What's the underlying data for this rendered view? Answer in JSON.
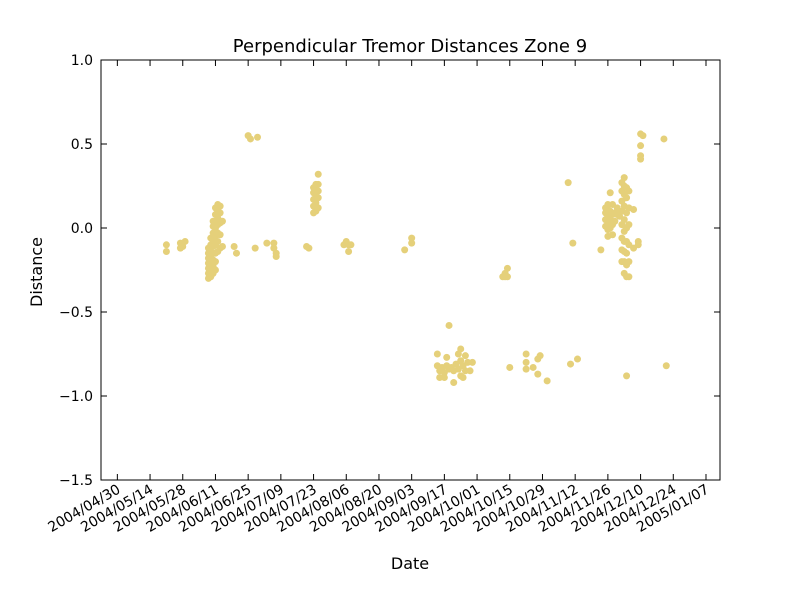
{
  "chart_data": {
    "type": "scatter",
    "title": "Perpendicular Tremor Distances Zone 9",
    "xlabel": "Date",
    "ylabel": "Distance",
    "x_axis": "date",
    "xlim": [
      "2004-04-23",
      "2005-01-13"
    ],
    "ylim": [
      -1.5,
      1.0
    ],
    "y_ticks": [
      1.0,
      0.5,
      0.0,
      -0.5,
      -1.0,
      -1.5
    ],
    "y_tick_labels": [
      "1.0",
      "0.5",
      "0.0",
      "−0.5",
      "−1.0",
      "−1.5"
    ],
    "x_ticks": [
      "2004-04-30",
      "2004-05-14",
      "2004-05-28",
      "2004-06-11",
      "2004-06-25",
      "2004-07-09",
      "2004-07-23",
      "2004-08-06",
      "2004-08-20",
      "2004-09-03",
      "2004-09-17",
      "2004-10-01",
      "2004-10-15",
      "2004-10-29",
      "2004-11-12",
      "2004-11-26",
      "2004-12-10",
      "2004-12-24",
      "2005-01-07"
    ],
    "x_tick_labels": [
      "2004/04/30",
      "2004/05/14",
      "2004/05/28",
      "2004/06/11",
      "2004/06/25",
      "2004/07/09",
      "2004/07/23",
      "2004/08/06",
      "2004/08/20",
      "2004/09/03",
      "2004/09/17",
      "2004/10/01",
      "2004/10/15",
      "2004/10/29",
      "2004/11/12",
      "2004/11/26",
      "2004/12/10",
      "2004/12/24",
      "2005/01/07"
    ],
    "grid": false,
    "legend": "none",
    "marker_color": "#e5d07a",
    "points": [
      [
        "2004-05-21",
        -0.1
      ],
      [
        "2004-05-21",
        -0.14
      ],
      [
        "2004-05-27",
        -0.09
      ],
      [
        "2004-05-27",
        -0.12
      ],
      [
        "2004-05-28",
        -0.11
      ],
      [
        "2004-05-29",
        -0.08
      ],
      [
        "2004-06-08",
        -0.3
      ],
      [
        "2004-06-08",
        -0.27
      ],
      [
        "2004-06-08",
        -0.24
      ],
      [
        "2004-06-08",
        -0.21
      ],
      [
        "2004-06-08",
        -0.18
      ],
      [
        "2004-06-08",
        -0.15
      ],
      [
        "2004-06-08",
        -0.12
      ],
      [
        "2004-06-09",
        -0.29
      ],
      [
        "2004-06-09",
        -0.26
      ],
      [
        "2004-06-09",
        -0.22
      ],
      [
        "2004-06-09",
        -0.18
      ],
      [
        "2004-06-09",
        -0.14
      ],
      [
        "2004-06-09",
        -0.1
      ],
      [
        "2004-06-09",
        -0.06
      ],
      [
        "2004-06-10",
        -0.27
      ],
      [
        "2004-06-10",
        -0.23
      ],
      [
        "2004-06-10",
        -0.19
      ],
      [
        "2004-06-10",
        -0.15
      ],
      [
        "2004-06-10",
        -0.11
      ],
      [
        "2004-06-10",
        -0.07
      ],
      [
        "2004-06-10",
        -0.03
      ],
      [
        "2004-06-10",
        0.01
      ],
      [
        "2004-06-10",
        0.04
      ],
      [
        "2004-06-11",
        -0.25
      ],
      [
        "2004-06-11",
        -0.2
      ],
      [
        "2004-06-11",
        -0.15
      ],
      [
        "2004-06-11",
        -0.1
      ],
      [
        "2004-06-11",
        -0.05
      ],
      [
        "2004-06-11",
        0.0
      ],
      [
        "2004-06-11",
        0.04
      ],
      [
        "2004-06-11",
        0.08
      ],
      [
        "2004-06-11",
        0.12
      ],
      [
        "2004-06-12",
        -0.14
      ],
      [
        "2004-06-12",
        -0.08
      ],
      [
        "2004-06-12",
        -0.03
      ],
      [
        "2004-06-12",
        0.02
      ],
      [
        "2004-06-12",
        0.06
      ],
      [
        "2004-06-12",
        0.1
      ],
      [
        "2004-06-12",
        0.14
      ],
      [
        "2004-06-13",
        -0.12
      ],
      [
        "2004-06-13",
        -0.04
      ],
      [
        "2004-06-13",
        0.03
      ],
      [
        "2004-06-13",
        0.09
      ],
      [
        "2004-06-13",
        0.13
      ],
      [
        "2004-06-14",
        -0.11
      ],
      [
        "2004-06-14",
        0.04
      ],
      [
        "2004-06-19",
        -0.11
      ],
      [
        "2004-06-20",
        -0.15
      ],
      [
        "2004-06-25",
        0.55
      ],
      [
        "2004-06-26",
        0.53
      ],
      [
        "2004-06-29",
        0.54
      ],
      [
        "2004-06-28",
        -0.12
      ],
      [
        "2004-07-03",
        -0.09
      ],
      [
        "2004-07-06",
        -0.09
      ],
      [
        "2004-07-06",
        -0.12
      ],
      [
        "2004-07-07",
        -0.15
      ],
      [
        "2004-07-07",
        -0.17
      ],
      [
        "2004-07-20",
        -0.11
      ],
      [
        "2004-07-21",
        -0.12
      ],
      [
        "2004-07-23",
        0.09
      ],
      [
        "2004-07-23",
        0.13
      ],
      [
        "2004-07-23",
        0.17
      ],
      [
        "2004-07-23",
        0.21
      ],
      [
        "2004-07-23",
        0.24
      ],
      [
        "2004-07-24",
        0.1
      ],
      [
        "2004-07-24",
        0.15
      ],
      [
        "2004-07-24",
        0.19
      ],
      [
        "2004-07-24",
        0.23
      ],
      [
        "2004-07-24",
        0.26
      ],
      [
        "2004-07-25",
        0.12
      ],
      [
        "2004-07-25",
        0.18
      ],
      [
        "2004-07-25",
        0.22
      ],
      [
        "2004-07-25",
        0.26
      ],
      [
        "2004-07-25",
        0.32
      ],
      [
        "2004-08-05",
        -0.1
      ],
      [
        "2004-08-06",
        -0.08
      ],
      [
        "2004-08-07",
        -0.1
      ],
      [
        "2004-08-07",
        -0.14
      ],
      [
        "2004-08-08",
        -0.1
      ],
      [
        "2004-08-31",
        -0.13
      ],
      [
        "2004-09-03",
        -0.06
      ],
      [
        "2004-09-03",
        -0.09
      ],
      [
        "2004-09-14",
        -0.75
      ],
      [
        "2004-09-14",
        -0.82
      ],
      [
        "2004-09-15",
        -0.85
      ],
      [
        "2004-09-15",
        -0.89
      ],
      [
        "2004-09-16",
        -0.83
      ],
      [
        "2004-09-17",
        -0.86
      ],
      [
        "2004-09-17",
        -0.89
      ],
      [
        "2004-09-18",
        -0.77
      ],
      [
        "2004-09-18",
        -0.82
      ],
      [
        "2004-09-19",
        -0.58
      ],
      [
        "2004-09-19",
        -0.84
      ],
      [
        "2004-09-20",
        -0.83
      ],
      [
        "2004-09-21",
        -0.85
      ],
      [
        "2004-09-21",
        -0.92
      ],
      [
        "2004-09-22",
        -0.81
      ],
      [
        "2004-09-23",
        -0.75
      ],
      [
        "2004-09-23",
        -0.84
      ],
      [
        "2004-09-24",
        -0.72
      ],
      [
        "2004-09-24",
        -0.79
      ],
      [
        "2004-09-24",
        -0.88
      ],
      [
        "2004-09-25",
        -0.82
      ],
      [
        "2004-09-25",
        -0.89
      ],
      [
        "2004-09-26",
        -0.76
      ],
      [
        "2004-09-26",
        -0.85
      ],
      [
        "2004-09-27",
        -0.8
      ],
      [
        "2004-09-28",
        -0.85
      ],
      [
        "2004-09-29",
        -0.8
      ],
      [
        "2004-10-12",
        -0.29
      ],
      [
        "2004-10-13",
        -0.27
      ],
      [
        "2004-10-13",
        -0.29
      ],
      [
        "2004-10-14",
        -0.24
      ],
      [
        "2004-10-14",
        -0.29
      ],
      [
        "2004-10-15",
        -0.83
      ],
      [
        "2004-10-22",
        -0.75
      ],
      [
        "2004-10-22",
        -0.8
      ],
      [
        "2004-10-22",
        -0.84
      ],
      [
        "2004-10-25",
        -0.83
      ],
      [
        "2004-10-27",
        -0.87
      ],
      [
        "2004-10-27",
        -0.78
      ],
      [
        "2004-10-28",
        -0.76
      ],
      [
        "2004-10-31",
        -0.91
      ],
      [
        "2004-11-09",
        0.27
      ],
      [
        "2004-11-10",
        -0.81
      ],
      [
        "2004-11-11",
        -0.09
      ],
      [
        "2004-11-13",
        -0.78
      ],
      [
        "2004-11-23",
        -0.13
      ],
      [
        "2004-11-25",
        0.01
      ],
      [
        "2004-11-25",
        0.05
      ],
      [
        "2004-11-25",
        0.09
      ],
      [
        "2004-11-25",
        0.12
      ],
      [
        "2004-11-26",
        -0.05
      ],
      [
        "2004-11-26",
        -0.01
      ],
      [
        "2004-11-26",
        0.03
      ],
      [
        "2004-11-26",
        0.07
      ],
      [
        "2004-11-26",
        0.11
      ],
      [
        "2004-11-26",
        0.14
      ],
      [
        "2004-11-27",
        0.0
      ],
      [
        "2004-11-27",
        0.05
      ],
      [
        "2004-11-27",
        0.1
      ],
      [
        "2004-11-27",
        0.21
      ],
      [
        "2004-11-28",
        -0.04
      ],
      [
        "2004-11-28",
        0.02
      ],
      [
        "2004-11-28",
        0.08
      ],
      [
        "2004-11-28",
        0.14
      ],
      [
        "2004-11-29",
        0.04
      ],
      [
        "2004-11-29",
        0.09
      ],
      [
        "2004-11-30",
        0.08
      ],
      [
        "2004-11-30",
        0.12
      ],
      [
        "2004-12-01",
        0.07
      ],
      [
        "2004-12-01",
        0.1
      ],
      [
        "2004-12-02",
        -0.2
      ],
      [
        "2004-12-02",
        -0.13
      ],
      [
        "2004-12-02",
        -0.06
      ],
      [
        "2004-12-02",
        0.02
      ],
      [
        "2004-12-02",
        0.1
      ],
      [
        "2004-12-02",
        0.16
      ],
      [
        "2004-12-02",
        0.22
      ],
      [
        "2004-12-02",
        0.27
      ],
      [
        "2004-12-03",
        -0.27
      ],
      [
        "2004-12-03",
        -0.2
      ],
      [
        "2004-12-03",
        -0.14
      ],
      [
        "2004-12-03",
        -0.08
      ],
      [
        "2004-12-03",
        -0.02
      ],
      [
        "2004-12-03",
        0.05
      ],
      [
        "2004-12-03",
        0.13
      ],
      [
        "2004-12-03",
        0.2
      ],
      [
        "2004-12-03",
        0.25
      ],
      [
        "2004-12-03",
        0.3
      ],
      [
        "2004-12-04",
        -0.29
      ],
      [
        "2004-12-04",
        -0.22
      ],
      [
        "2004-12-04",
        -0.15
      ],
      [
        "2004-12-04",
        -0.08
      ],
      [
        "2004-12-04",
        0.0
      ],
      [
        "2004-12-04",
        0.09
      ],
      [
        "2004-12-04",
        0.18
      ],
      [
        "2004-12-04",
        0.24
      ],
      [
        "2004-12-04",
        -0.88
      ],
      [
        "2004-12-05",
        -0.29
      ],
      [
        "2004-12-05",
        -0.2
      ],
      [
        "2004-12-05",
        -0.1
      ],
      [
        "2004-12-05",
        0.02
      ],
      [
        "2004-12-05",
        0.12
      ],
      [
        "2004-12-05",
        0.22
      ],
      [
        "2004-12-07",
        -0.12
      ],
      [
        "2004-12-07",
        0.11
      ],
      [
        "2004-12-09",
        -0.08
      ],
      [
        "2004-12-09",
        -0.1
      ],
      [
        "2004-12-10",
        0.56
      ],
      [
        "2004-12-10",
        0.49
      ],
      [
        "2004-12-10",
        0.43
      ],
      [
        "2004-12-10",
        0.41
      ],
      [
        "2004-12-11",
        0.55
      ],
      [
        "2004-12-20",
        0.53
      ],
      [
        "2004-12-21",
        -0.82
      ]
    ]
  }
}
